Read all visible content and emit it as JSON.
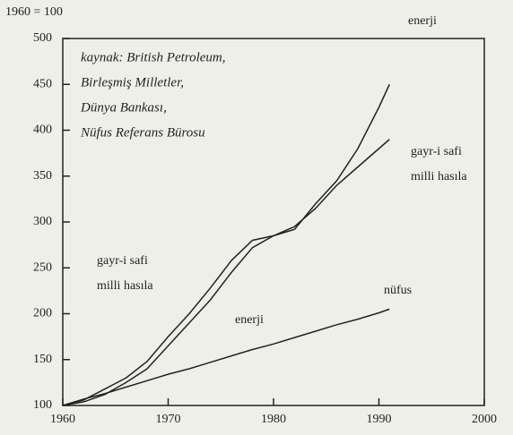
{
  "chart_data": {
    "type": "line",
    "title": "1960 = 100",
    "source": [
      "kaynak: British Petroleum,",
      "Birleşmiş Milletler,",
      "Dünya Bankası,",
      "Nüfus Referans Bürosu"
    ],
    "x": [
      1960,
      1962,
      1964,
      1966,
      1968,
      1970,
      1972,
      1974,
      1976,
      1978,
      1980,
      1982,
      1984,
      1986,
      1988,
      1990,
      1991
    ],
    "series": [
      {
        "name": [
          "enerji"
        ],
        "color": "#222222",
        "values": [
          100,
          104,
          112,
          125,
          140,
          165,
          190,
          215,
          245,
          272,
          285,
          292,
          320,
          345,
          380,
          425,
          450
        ]
      },
      {
        "name": [
          "gayr-i safi",
          "milli hasıla"
        ],
        "color": "#222222",
        "values": [
          100,
          106,
          118,
          130,
          148,
          175,
          200,
          228,
          258,
          280,
          285,
          295,
          315,
          340,
          360,
          380,
          390
        ]
      },
      {
        "name": [
          "nüfus"
        ],
        "color": "#222222",
        "values": [
          100,
          107,
          113,
          120,
          127,
          134,
          140,
          147,
          154,
          161,
          167,
          174,
          181,
          188,
          194,
          201,
          205
        ]
      }
    ],
    "annotations": [
      [
        "gayr-i safi",
        "milli hasıla"
      ],
      [
        "enerji"
      ]
    ],
    "xlim": [
      1960,
      2000
    ],
    "xticks": [
      1960,
      1970,
      1980,
      1990,
      2000
    ],
    "ylim": [
      100,
      500
    ],
    "yticks": [
      100,
      150,
      200,
      250,
      300,
      350,
      400,
      450,
      500
    ]
  }
}
